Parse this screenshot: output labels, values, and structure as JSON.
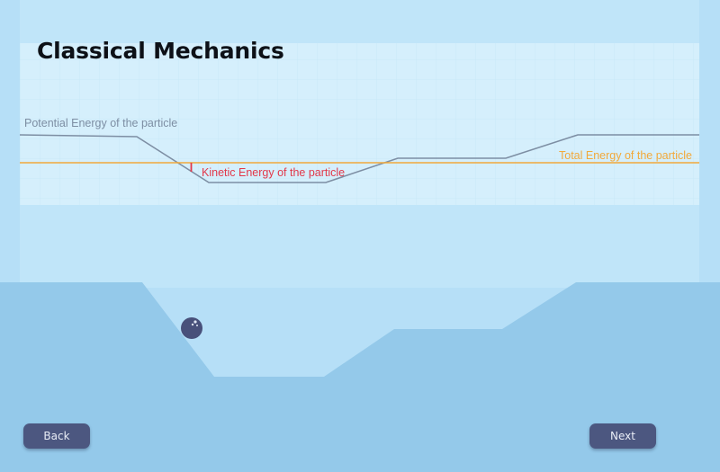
{
  "header": {
    "title": "Classical Mechanics"
  },
  "graph": {
    "potential_label": "Potential Energy of the particle",
    "kinetic_label": "Kinetic Energy of the particle",
    "total_label": "Total Energy of the particle"
  },
  "colors": {
    "background": "#b6dff7",
    "graph_panel": "#d5effc",
    "terrain": "#94c9ea",
    "potential_line": "#7d8ea3",
    "total_line": "#f2a93b",
    "kinetic_marker": "#e2384a",
    "ball": "#48507a",
    "button": "#4c5780"
  },
  "nav": {
    "back_label": "Back",
    "next_label": "Next"
  }
}
